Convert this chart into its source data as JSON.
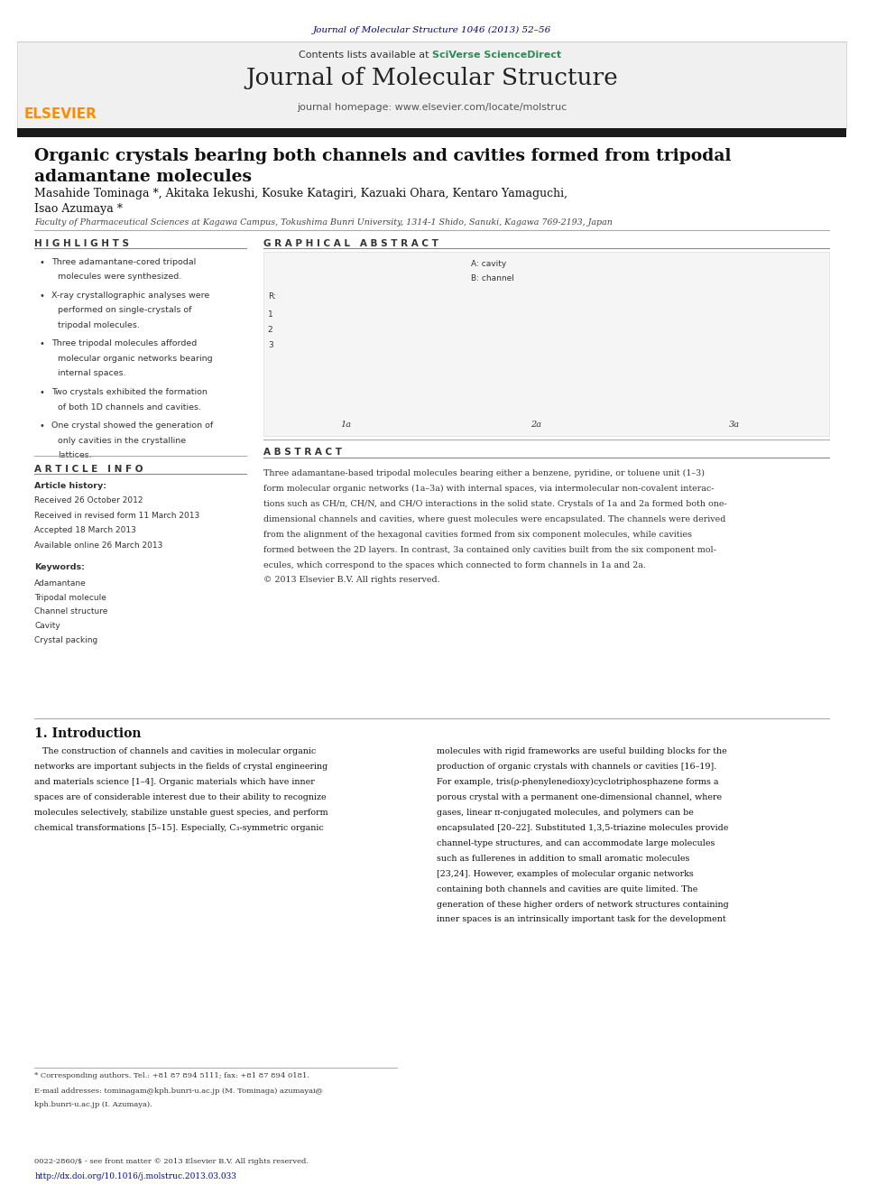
{
  "journal_ref": "Journal of Molecular Structure 1046 (2013) 52–56",
  "journal_ref_color": "#00008B",
  "header_text1": "Contents lists available at ",
  "header_sciverse": "SciVerse ScienceDirect",
  "header_sciverse_color": "#2E8B57",
  "journal_title": "Journal of Molecular Structure",
  "journal_homepage": "journal homepage: www.elsevier.com/locate/molstruc",
  "elsevier_color": "#FF8C00",
  "black_bar_color": "#1a1a1a",
  "article_title_line1": "Organic crystals bearing both channels and cavities formed from tripodal",
  "article_title_line2": "adamantane molecules",
  "authors_line1": "Masahide Tominaga *, Akitaka Iekushi, Kosuke Katagiri, Kazuaki Ohara, Kentaro Yamaguchi,",
  "authors_line2": "Isao Azumaya *",
  "affiliation": "Faculty of Pharmaceutical Sciences at Kagawa Campus, Tokushima Bunri University, 1314-1 Shido, Sanuki, Kagawa 769-2193, Japan",
  "highlights_title": "H I G H L I G H T S",
  "highlights": [
    "Three adamantane-cored tripodal\nmolecules were synthesized.",
    "X-ray crystallographic analyses were\nperformed on single-crystals of\ntripodal molecules.",
    "Three tripodal molecules afforded\nmolecular organic networks bearing\ninternal spaces.",
    "Two crystals exhibited the formation\nof both 1D channels and cavities.",
    "One crystal showed the generation of\nonly cavities in the crystalline\nlattices."
  ],
  "graphical_abstract_title": "G R A P H I C A L   A B S T R A C T",
  "article_info_title": "A R T I C L E   I N F O",
  "article_history_label": "Article history:",
  "received": "Received 26 October 2012",
  "received_revised": "Received in revised form 11 March 2013",
  "accepted": "Accepted 18 March 2013",
  "available": "Available online 26 March 2013",
  "keywords_label": "Keywords:",
  "keywords": [
    "Adamantane",
    "Tripodal molecule",
    "Channel structure",
    "Cavity",
    "Crystal packing"
  ],
  "abstract_title": "A B S T R A C T",
  "abstract_text_lines": [
    "Three adamantane-based tripodal molecules bearing either a benzene, pyridine, or toluene unit (1–3)",
    "form molecular organic networks (1a–3a) with internal spaces, via intermolecular non-covalent interac-",
    "tions such as CH/π, CH/N, and CH/O interactions in the solid state. Crystals of 1a and 2a formed both one-",
    "dimensional channels and cavities, where guest molecules were encapsulated. The channels were derived",
    "from the alignment of the hexagonal cavities formed from six component molecules, while cavities",
    "formed between the 2D layers. In contrast, 3a contained only cavities built from the six component mol-",
    "ecules, which correspond to the spaces which connected to form channels in 1a and 2a.",
    "© 2013 Elsevier B.V. All rights reserved."
  ],
  "intro_title": "1. Introduction",
  "intro_text1_lines": [
    "   The construction of channels and cavities in molecular organic",
    "networks are important subjects in the fields of crystal engineering",
    "and materials science [1–4]. Organic materials which have inner",
    "spaces are of considerable interest due to their ability to recognize",
    "molecules selectively, stabilize unstable guest species, and perform",
    "chemical transformations [5–15]. Especially, C₃-symmetric organic"
  ],
  "intro_text2_lines": [
    "molecules with rigid frameworks are useful building blocks for the",
    "production of organic crystals with channels or cavities [16–19].",
    "For example, tris(ρ-phenylenedioxy)cyclotriphosphazene forms a",
    "porous crystal with a permanent one-dimensional channel, where",
    "gases, linear π-conjugated molecules, and polymers can be",
    "encapsulated [20–22]. Substituted 1,3,5-triazine molecules provide",
    "channel-type structures, and can accommodate large molecules",
    "such as fullerenes in addition to small aromatic molecules",
    "[23,24]. However, examples of molecular organic networks",
    "containing both channels and cavities are quite limited. The",
    "generation of these higher orders of network structures containing",
    "inner spaces is an intrinsically important task for the development"
  ],
  "footnote1": "* Corresponding authors. Tel.: +81 87 894 5111; fax: +81 87 894 0181.",
  "footnote2a": "E-mail addresses: tominagam@kph.bunri-u.ac.jp (M. Tominaga) azumayai@",
  "footnote2b": "kph.bunri-u.ac.jp (I. Azumaya).",
  "footer1": "0022-2860/$ - see front matter © 2013 Elsevier B.V. All rights reserved.",
  "footer2": "http://dx.doi.org/10.1016/j.molstruc.2013.03.033",
  "footer_color": "#0000CD",
  "bg_color": "#ffffff",
  "header_bg": "#f0f0f0",
  "section_line_color": "#000000",
  "highlights_line_color": "#888888"
}
